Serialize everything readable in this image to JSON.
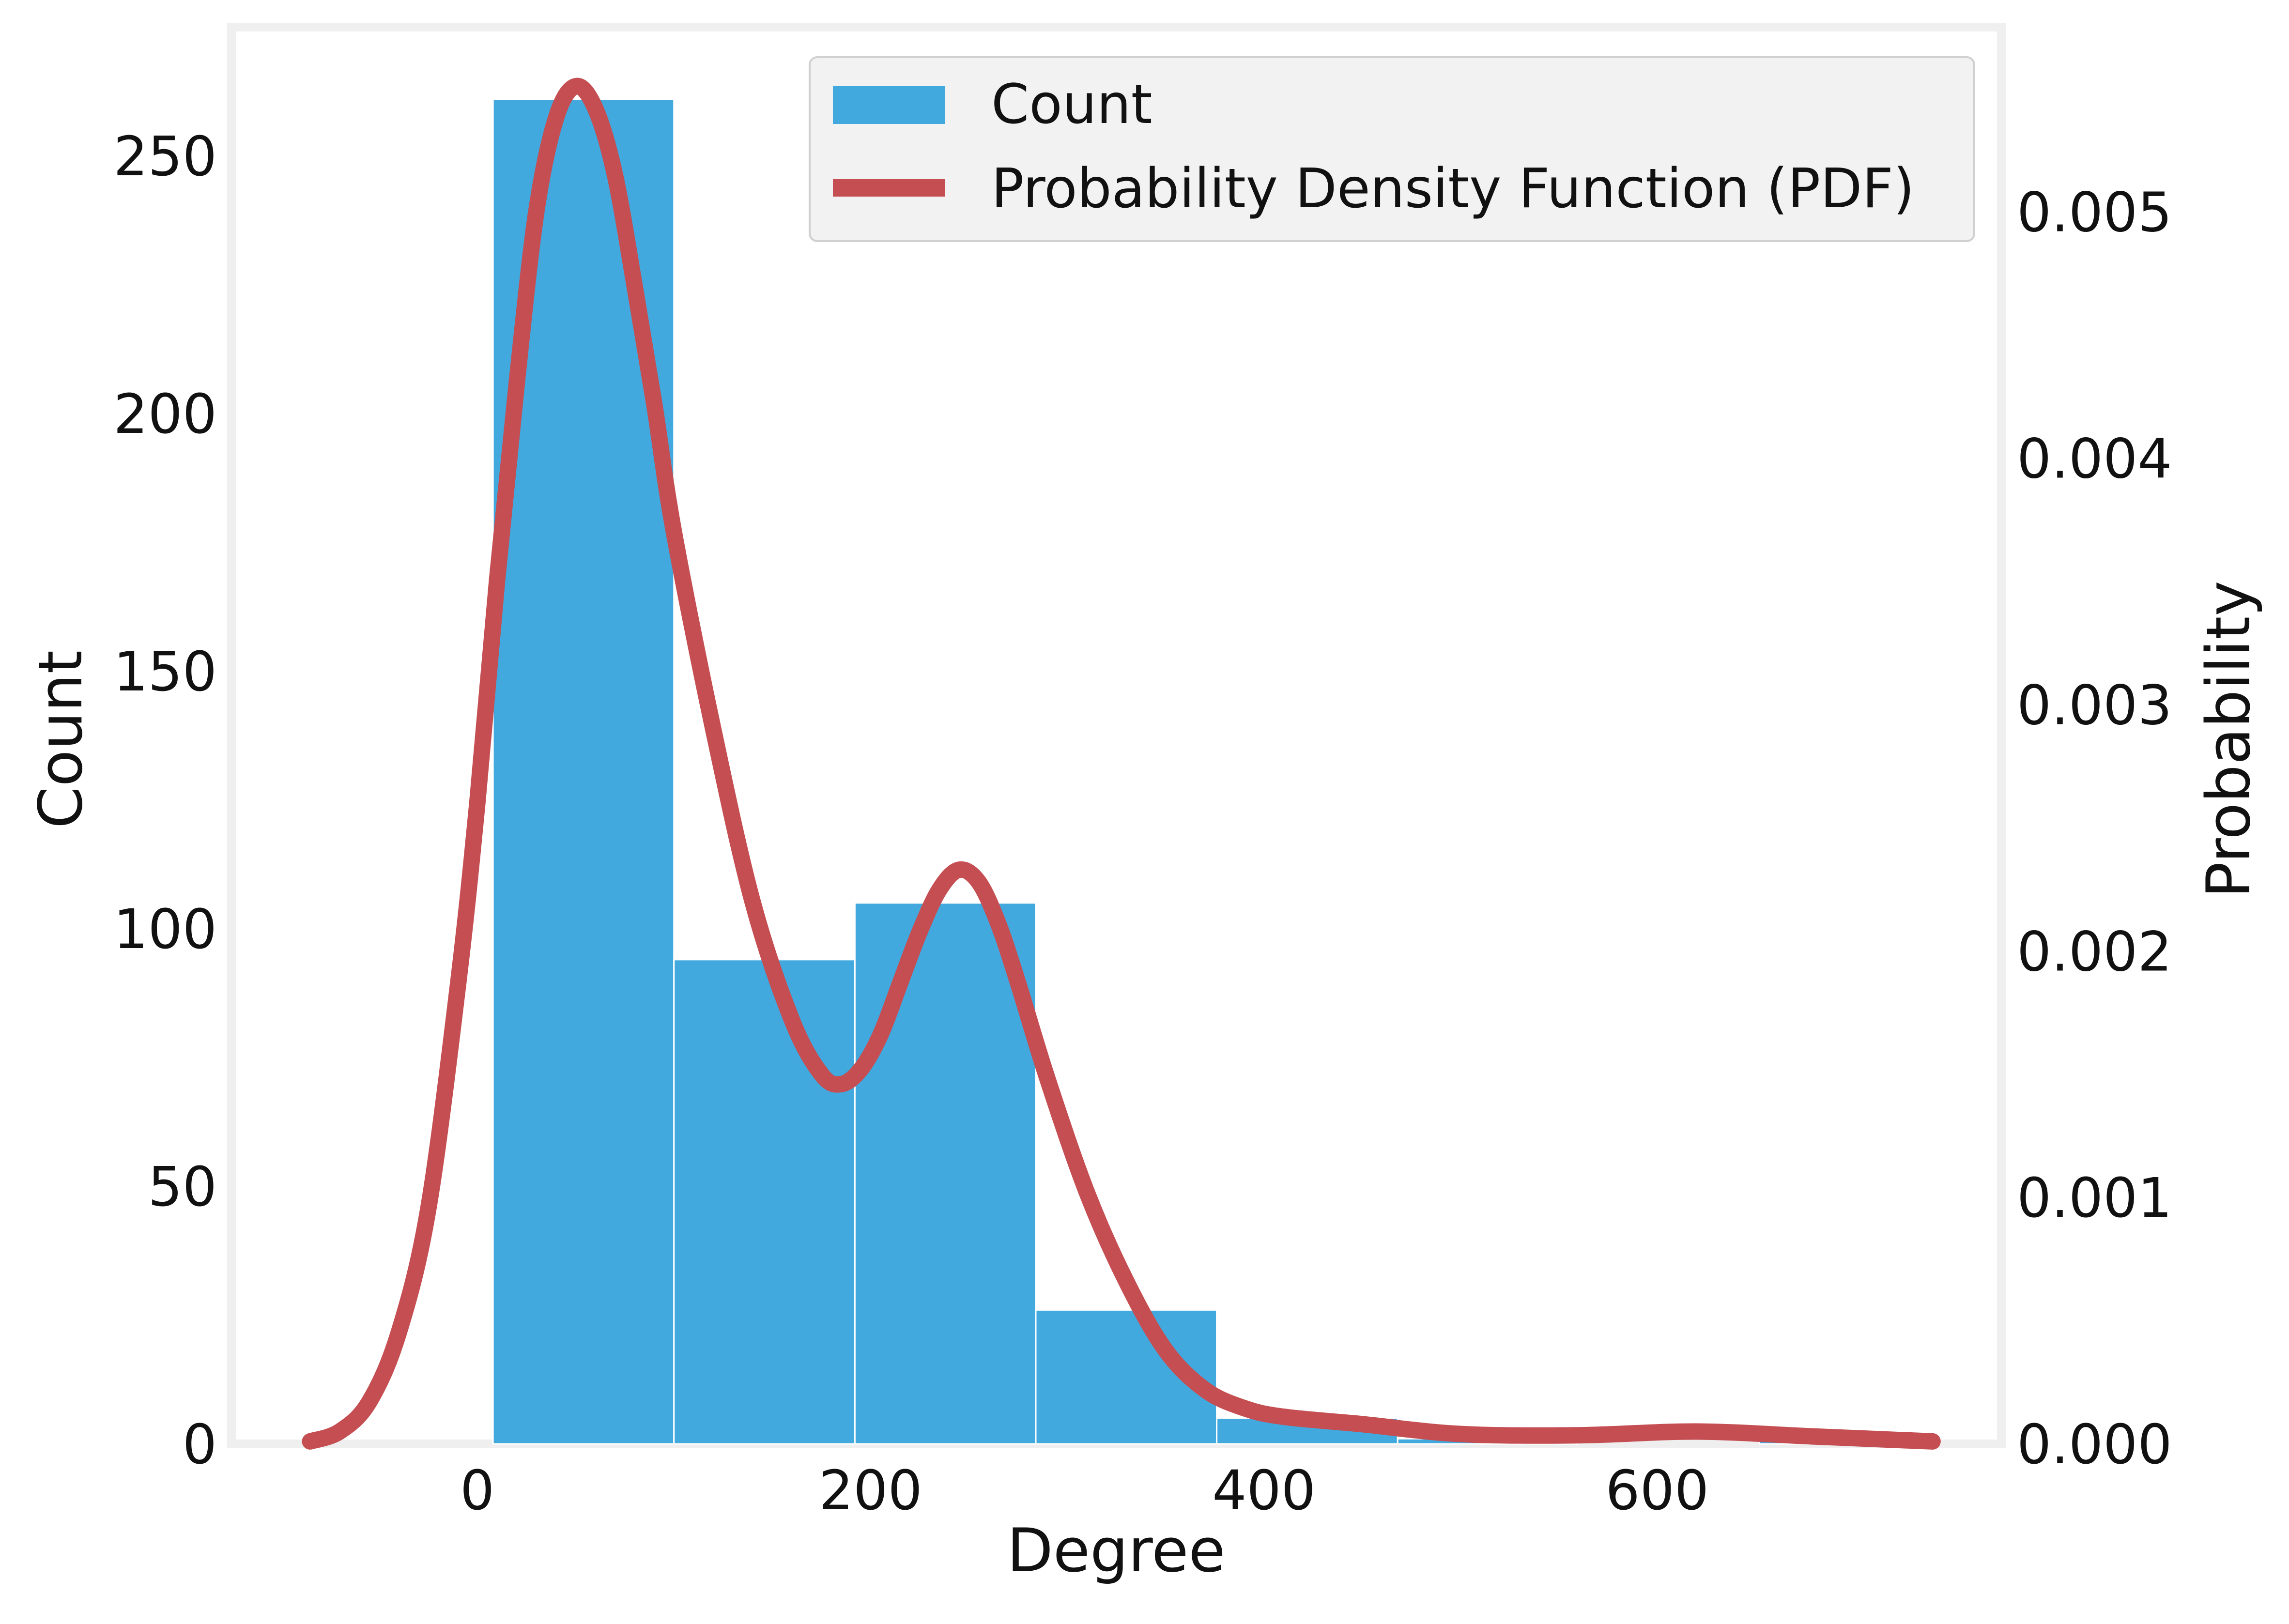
{
  "chart_data": {
    "type": "bar",
    "xlabel": "Degree",
    "ylabel": "Count",
    "y2label": "Probability",
    "xlim": [
      -125,
      775
    ],
    "ylim": [
      0,
      275
    ],
    "y2lim": [
      0,
      0.00575
    ],
    "xticks": [
      0,
      200,
      400,
      600
    ],
    "yticks": [
      0,
      50,
      100,
      150,
      200,
      250
    ],
    "y2ticks": [
      0.0,
      0.001,
      0.002,
      0.003,
      0.004,
      0.005
    ],
    "y2tick_labels": [
      "0.000",
      "0.001",
      "0.002",
      "0.003",
      "0.004",
      "0.005"
    ],
    "grid": false,
    "legend_position": "top-right",
    "series": [
      {
        "name": "Count",
        "kind": "histogram",
        "color": "#42a9df",
        "bin_edges": [
          8,
          100,
          192,
          284,
          376,
          468,
          560,
          652,
          744
        ],
        "values": [
          261,
          94,
          105,
          26,
          5,
          1,
          0,
          1
        ]
      },
      {
        "name": "Probability Density Function (PDF)",
        "kind": "line",
        "axis": "right",
        "color": "#c44e52",
        "x": [
          -85,
          -70,
          -55,
          -40,
          -25,
          -10,
          0,
          10,
          20,
          30,
          40,
          50,
          60,
          70,
          80,
          90,
          100,
          120,
          140,
          160,
          175,
          185,
          195,
          205,
          215,
          225,
          235,
          245,
          255,
          265,
          275,
          290,
          310,
          330,
          350,
          370,
          390,
          410,
          450,
          500,
          560,
          620,
          680,
          740
        ],
        "y": [
          1e-05,
          5e-05,
          0.00017,
          0.00045,
          0.00095,
          0.00185,
          0.0026,
          0.0035,
          0.0043,
          0.005,
          0.00538,
          0.00551,
          0.00542,
          0.00515,
          0.0047,
          0.00422,
          0.0037,
          0.0029,
          0.0022,
          0.00172,
          0.0015,
          0.00146,
          0.00152,
          0.00166,
          0.00187,
          0.00208,
          0.00225,
          0.00233,
          0.00228,
          0.00211,
          0.00187,
          0.00148,
          0.00102,
          0.00066,
          0.00038,
          0.00022,
          0.000145,
          0.00011,
          8e-05,
          4e-05,
          3.5e-05,
          5e-05,
          3e-05,
          1e-05
        ]
      }
    ]
  }
}
